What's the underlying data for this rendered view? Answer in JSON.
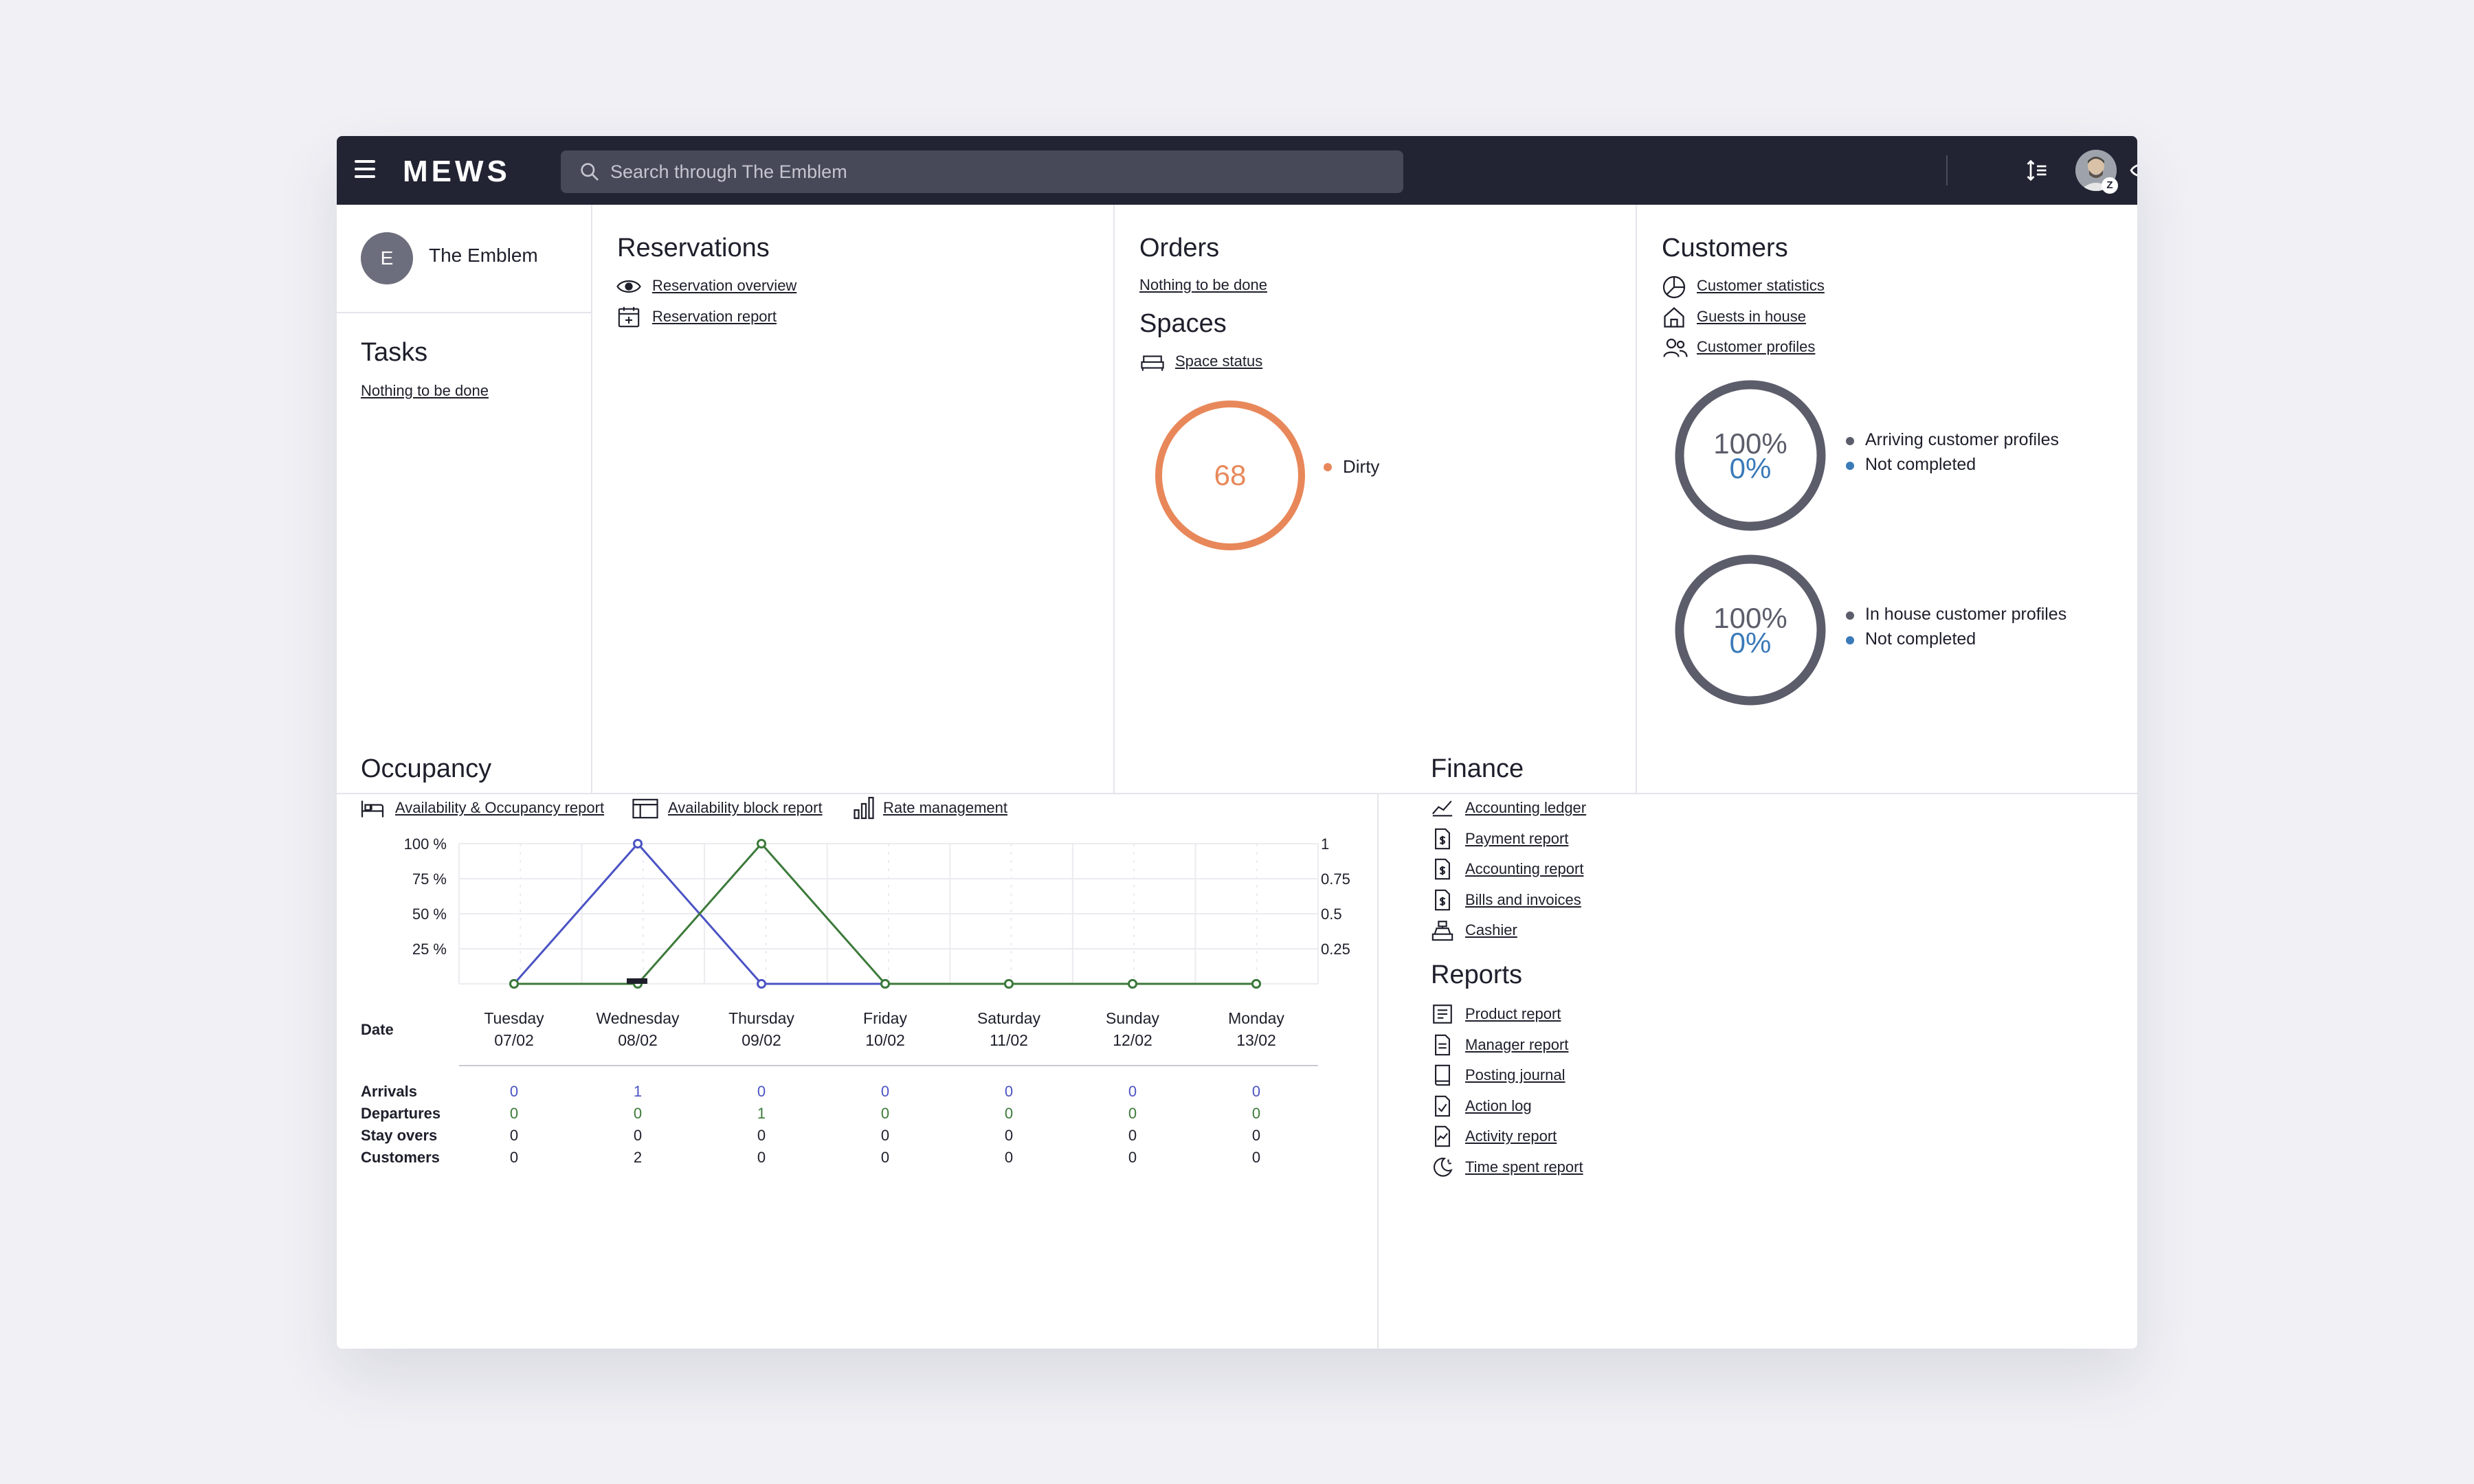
{
  "header": {
    "brand": "MEWS",
    "search_placeholder": "Search through The Emblem",
    "avatar_badge": "Z",
    "icons": [
      "sort-icon",
      "add-icon",
      "eye-icon",
      "bell-icon",
      "mail-icon",
      "help-chat-icon",
      "gift-icon"
    ]
  },
  "property": {
    "initial": "E",
    "name": "The Emblem"
  },
  "tasks": {
    "title": "Tasks",
    "empty_link": "Nothing to be done"
  },
  "reservations": {
    "title": "Reservations",
    "links": [
      "Reservation overview",
      "Reservation report"
    ]
  },
  "orders": {
    "title": "Orders",
    "empty_link": "Nothing to be done"
  },
  "spaces": {
    "title": "Spaces",
    "link": "Space status",
    "dirty_count": "68",
    "legend": "Dirty",
    "color": "#e8885a"
  },
  "customers": {
    "title": "Customers",
    "links": [
      "Customer statistics",
      "Guests in house",
      "Customer profiles"
    ],
    "gauges": [
      {
        "top": "100%",
        "bottom": "0%",
        "legend_top": "Arriving customer profiles",
        "legend_bottom": "Not completed"
      },
      {
        "top": "100%",
        "bottom": "0%",
        "legend_top": "In house customer profiles",
        "legend_bottom": "Not completed"
      }
    ]
  },
  "occupancy": {
    "title": "Occupancy",
    "links": [
      "Availability & Occupancy report",
      "Availability block report",
      "Rate management"
    ],
    "row_labels": {
      "date": "Date",
      "arrivals": "Arrivals",
      "departures": "Departures",
      "stay_overs": "Stay overs",
      "customers": "Customers"
    },
    "days": [
      {
        "day": "Tuesday",
        "date": "07/02",
        "arrivals": "0",
        "departures": "0",
        "stay_overs": "0",
        "customers": "0"
      },
      {
        "day": "Wednesday",
        "date": "08/02",
        "arrivals": "1",
        "departures": "0",
        "stay_overs": "0",
        "customers": "2"
      },
      {
        "day": "Thursday",
        "date": "09/02",
        "arrivals": "0",
        "departures": "1",
        "stay_overs": "0",
        "customers": "0"
      },
      {
        "day": "Friday",
        "date": "10/02",
        "arrivals": "0",
        "departures": "0",
        "stay_overs": "0",
        "customers": "0"
      },
      {
        "day": "Saturday",
        "date": "11/02",
        "arrivals": "0",
        "departures": "0",
        "stay_overs": "0",
        "customers": "0"
      },
      {
        "day": "Sunday",
        "date": "12/02",
        "arrivals": "0",
        "departures": "0",
        "stay_overs": "0",
        "customers": "0"
      },
      {
        "day": "Monday",
        "date": "13/02",
        "arrivals": "0",
        "departures": "0",
        "stay_overs": "0",
        "customers": "0"
      }
    ]
  },
  "chart_data": {
    "type": "line",
    "x": [
      "07/02",
      "08/02",
      "09/02",
      "10/02",
      "11/02",
      "12/02",
      "13/02"
    ],
    "series": [
      {
        "values": [
          0,
          100,
          0,
          0,
          0,
          0,
          0
        ],
        "color": "#4b53c4"
      },
      {
        "values": [
          0,
          0,
          100,
          0,
          0,
          0,
          0
        ],
        "color": "#3c7a3a"
      }
    ],
    "left_ticks": [
      "100 %",
      "75 %",
      "50 %",
      "25 %"
    ],
    "right_ticks": [
      "1",
      "0.75",
      "0.5",
      "0.25"
    ],
    "ylim": [
      0,
      100
    ],
    "grid": true
  },
  "finance": {
    "title": "Finance",
    "links": [
      "Accounting ledger",
      "Payment report",
      "Accounting report",
      "Bills and invoices",
      "Cashier"
    ]
  },
  "reports": {
    "title": "Reports",
    "links": [
      "Product report",
      "Manager report",
      "Posting journal",
      "Action log",
      "Activity report",
      "Time spent report"
    ]
  },
  "colors": {
    "header_bg": "#222433",
    "arrivals": "#4b53c4",
    "departures": "#3c7a3a",
    "gauge_ring": "#5c5d6b",
    "gauge_blue": "#3a7ab8",
    "spaces_orange": "#e8885a"
  }
}
